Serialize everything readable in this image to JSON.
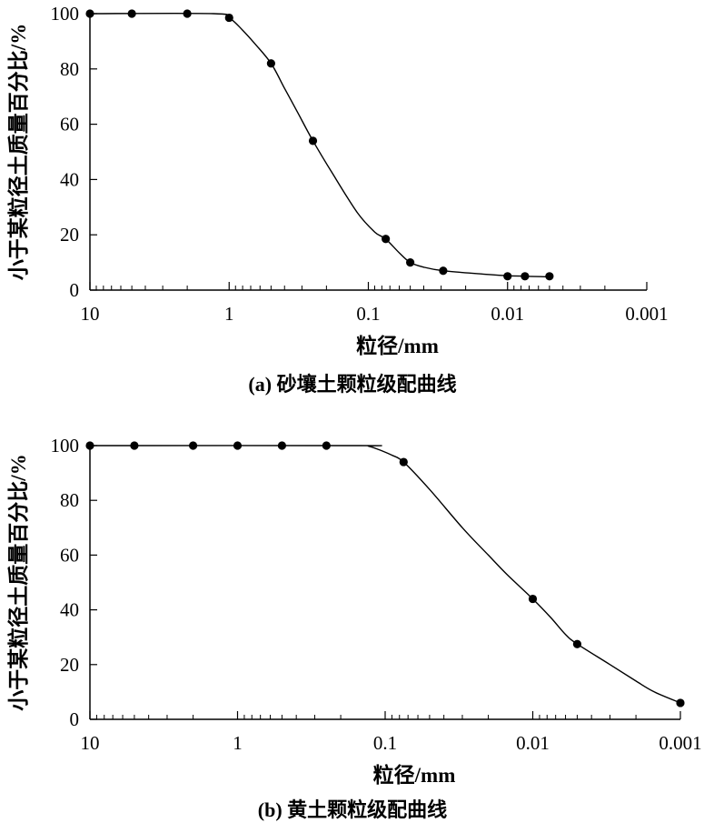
{
  "chart_data": [
    {
      "type": "line",
      "caption": "(a) 砂壤土颗粒级配曲线",
      "xlabel": "粒径/mm",
      "ylabel": "小于某粒径土质量百分比/%",
      "x_scale": "log",
      "x_reversed": true,
      "xlim": [
        10,
        0.001
      ],
      "ylim": [
        0,
        100
      ],
      "x_ticks": [
        10,
        1,
        0.1,
        0.01,
        0.001
      ],
      "x_tick_labels": [
        "10",
        "1",
        "0.1",
        "0.01",
        "0.001"
      ],
      "y_ticks": [
        0,
        20,
        40,
        60,
        80,
        100
      ],
      "y_tick_labels": [
        "0",
        "20",
        "40",
        "60",
        "80",
        "100"
      ],
      "grid": false,
      "series": [
        {
          "x": [
            10,
            5,
            2,
            1,
            0.5,
            0.25,
            0.075,
            0.05,
            0.029,
            0.01,
            0.0075,
            0.005
          ],
          "values": [
            100,
            100,
            100,
            98.5,
            82,
            54,
            18.5,
            10,
            7,
            5,
            5,
            5
          ]
        }
      ],
      "curve": [
        [
          10,
          100
        ],
        [
          1.3,
          100
        ],
        [
          1,
          98.5
        ],
        [
          0.8,
          94
        ],
        [
          0.65,
          89
        ],
        [
          0.5,
          82
        ],
        [
          0.4,
          73
        ],
        [
          0.32,
          64
        ],
        [
          0.25,
          54
        ],
        [
          0.18,
          42
        ],
        [
          0.12,
          28
        ],
        [
          0.09,
          21
        ],
        [
          0.075,
          18.5
        ],
        [
          0.06,
          13.5
        ],
        [
          0.05,
          10
        ],
        [
          0.04,
          8.3
        ],
        [
          0.029,
          7
        ],
        [
          0.015,
          5.8
        ],
        [
          0.01,
          5.2
        ],
        [
          0.005,
          4.8
        ]
      ]
    },
    {
      "type": "line",
      "caption": "(b) 黄土颗粒级配曲线",
      "xlabel": "粒径/mm",
      "ylabel": "小于某粒径土质量百分比/%",
      "x_scale": "log",
      "x_reversed": true,
      "xlim": [
        10,
        0.001
      ],
      "ylim": [
        0,
        100
      ],
      "x_ticks": [
        10,
        1,
        0.1,
        0.01,
        0.001
      ],
      "x_tick_labels": [
        "10",
        "1",
        "0.1",
        "0.01",
        "0.001"
      ],
      "y_ticks": [
        0,
        20,
        40,
        60,
        80,
        100
      ],
      "y_tick_labels": [
        "0",
        "20",
        "40",
        "60",
        "80",
        "100"
      ],
      "grid": false,
      "series": [
        {
          "x": [
            10,
            5,
            2,
            1,
            0.5,
            0.25,
            0.075,
            0.01,
            0.005,
            0.001
          ],
          "values": [
            100,
            100,
            100,
            100,
            100,
            100,
            94,
            44,
            27.5,
            6
          ]
        }
      ],
      "curve": [
        [
          10,
          100
        ],
        [
          0.15,
          100
        ],
        [
          0.13,
          99.8
        ],
        [
          0.11,
          98.5
        ],
        [
          0.09,
          96.5
        ],
        [
          0.075,
          94
        ],
        [
          0.05,
          84
        ],
        [
          0.03,
          70
        ],
        [
          0.02,
          60
        ],
        [
          0.015,
          53
        ],
        [
          0.01,
          44
        ],
        [
          0.0075,
          37
        ],
        [
          0.006,
          31
        ],
        [
          0.005,
          27.5
        ],
        [
          0.003,
          20
        ],
        [
          0.002,
          14
        ],
        [
          0.0015,
          10
        ],
        [
          0.001,
          6
        ]
      ]
    }
  ]
}
